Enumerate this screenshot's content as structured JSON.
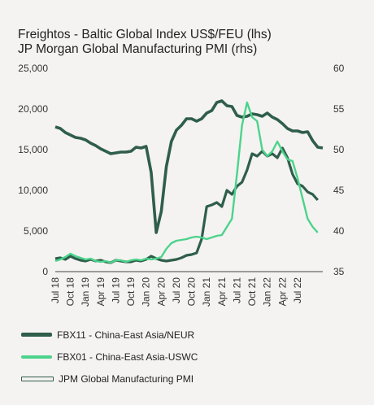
{
  "chart_data": {
    "type": "line",
    "title": [
      "Freightos  - Baltic Global Index US$/FEU (lhs)",
      "JP Morgan Global Manufacturing PMI (rhs)"
    ],
    "x_tick_labels": [
      "Jul 18",
      "Oct 18",
      "Jan 19",
      "Apr 19",
      "Jul 19",
      "Oct 19",
      "Jan 20",
      "Apr 20",
      "Jul 20",
      "Oct 20",
      "Jan 21",
      "Apr 21",
      "Jul 21",
      "Oct 21",
      "Jan 22",
      "Apr 22",
      "Jul 22"
    ],
    "x_range": [
      "2018-07",
      "2022-10"
    ],
    "y_left": {
      "range": [
        0,
        25000
      ],
      "ticks": [
        "0",
        "5,000",
        "10,000",
        "15,000",
        "20,000",
        "25,000"
      ]
    },
    "y_right": {
      "range": [
        35,
        60
      ],
      "ticks": [
        "35",
        "40",
        "45",
        "50",
        "55",
        "60"
      ]
    },
    "series": [
      {
        "name": "FBX11 - China-East Asia/NEUR",
        "axis": "left",
        "color": "#2f5e4b",
        "points": [
          [
            0,
            1600
          ],
          [
            1,
            1700
          ],
          [
            2,
            1500
          ],
          [
            3,
            1900
          ],
          [
            4,
            1600
          ],
          [
            5,
            1400
          ],
          [
            6,
            1300
          ],
          [
            7,
            1500
          ],
          [
            8,
            1300
          ],
          [
            9,
            1400
          ],
          [
            10,
            1200
          ],
          [
            11,
            1100
          ],
          [
            12,
            1400
          ],
          [
            13,
            1300
          ],
          [
            14,
            1200
          ],
          [
            15,
            1200
          ],
          [
            16,
            1400
          ],
          [
            17,
            1300
          ],
          [
            18,
            1500
          ],
          [
            19,
            1900
          ],
          [
            20,
            1600
          ],
          [
            21,
            1400
          ],
          [
            22,
            1300
          ],
          [
            23,
            1400
          ],
          [
            24,
            1500
          ],
          [
            25,
            1700
          ],
          [
            26,
            2000
          ],
          [
            27,
            2100
          ],
          [
            28,
            2300
          ],
          [
            29,
            4000
          ],
          [
            30,
            8000
          ],
          [
            31,
            8200
          ],
          [
            32,
            8500
          ],
          [
            33,
            8000
          ],
          [
            34,
            10000
          ],
          [
            35,
            9500
          ],
          [
            36,
            10500
          ],
          [
            37,
            11000
          ],
          [
            38,
            12500
          ],
          [
            39,
            14500
          ],
          [
            40,
            14200
          ],
          [
            41,
            14800
          ],
          [
            42,
            14200
          ],
          [
            43,
            14500
          ],
          [
            44,
            14000
          ],
          [
            45,
            15200
          ],
          [
            46,
            14000
          ],
          [
            47,
            12000
          ],
          [
            48,
            10800
          ],
          [
            49,
            10500
          ],
          [
            50,
            9800
          ],
          [
            51,
            9500
          ],
          [
            52,
            8800
          ]
        ]
      },
      {
        "name": "FBX01 - China-East Asia-USWC",
        "axis": "left",
        "color": "#4cd38b",
        "points": [
          [
            0,
            1300
          ],
          [
            1,
            1500
          ],
          [
            2,
            1800
          ],
          [
            3,
            2200
          ],
          [
            4,
            1900
          ],
          [
            5,
            1700
          ],
          [
            6,
            1500
          ],
          [
            7,
            1600
          ],
          [
            8,
            1300
          ],
          [
            9,
            1200
          ],
          [
            10,
            1300
          ],
          [
            11,
            1100
          ],
          [
            12,
            1400
          ],
          [
            13,
            1400
          ],
          [
            14,
            1200
          ],
          [
            15,
            1400
          ],
          [
            16,
            1500
          ],
          [
            17,
            1400
          ],
          [
            18,
            1600
          ],
          [
            19,
            1500
          ],
          [
            20,
            1600
          ],
          [
            21,
            1800
          ],
          [
            22,
            2800
          ],
          [
            23,
            3500
          ],
          [
            24,
            3800
          ],
          [
            25,
            3900
          ],
          [
            26,
            4000
          ],
          [
            27,
            4200
          ],
          [
            28,
            4300
          ],
          [
            29,
            4200
          ],
          [
            30,
            4000
          ],
          [
            31,
            4200
          ],
          [
            32,
            4400
          ],
          [
            33,
            4500
          ],
          [
            34,
            5500
          ],
          [
            35,
            6500
          ],
          [
            36,
            12000
          ],
          [
            37,
            18000
          ],
          [
            38,
            20800
          ],
          [
            39,
            19000
          ],
          [
            40,
            18500
          ],
          [
            41,
            15000
          ],
          [
            42,
            14200
          ],
          [
            43,
            14800
          ],
          [
            44,
            16000
          ],
          [
            45,
            14800
          ],
          [
            46,
            13800
          ],
          [
            47,
            13600
          ],
          [
            48,
            11500
          ],
          [
            49,
            9000
          ],
          [
            50,
            6500
          ],
          [
            51,
            5500
          ],
          [
            52,
            4800
          ]
        ]
      },
      {
        "name": "JPM Global Manufacturing PMI",
        "axis": "right",
        "color": "#2f5e4b",
        "style": "double-outline",
        "points": [
          [
            0,
            52.8
          ],
          [
            1,
            52.6
          ],
          [
            2,
            52.1
          ],
          [
            3,
            51.8
          ],
          [
            4,
            51.5
          ],
          [
            5,
            51.4
          ],
          [
            6,
            51.2
          ],
          [
            7,
            50.8
          ],
          [
            8,
            50.5
          ],
          [
            9,
            50.1
          ],
          [
            10,
            49.8
          ],
          [
            11,
            49.5
          ],
          [
            12,
            49.6
          ],
          [
            13,
            49.7
          ],
          [
            14,
            49.7
          ],
          [
            15,
            49.8
          ],
          [
            16,
            50.3
          ],
          [
            17,
            50.2
          ],
          [
            18,
            50.4
          ],
          [
            19,
            47.2
          ],
          [
            20,
            39.8
          ],
          [
            21,
            42.4
          ],
          [
            22,
            47.9
          ],
          [
            23,
            51.0
          ],
          [
            24,
            52.4
          ],
          [
            25,
            53.0
          ],
          [
            26,
            53.8
          ],
          [
            27,
            53.8
          ],
          [
            28,
            53.5
          ],
          [
            29,
            53.8
          ],
          [
            30,
            54.5
          ],
          [
            31,
            54.8
          ],
          [
            32,
            55.8
          ],
          [
            33,
            56.0
          ],
          [
            34,
            55.4
          ],
          [
            35,
            55.3
          ],
          [
            36,
            54.2
          ],
          [
            37,
            54.0
          ],
          [
            38,
            54.1
          ],
          [
            39,
            54.4
          ],
          [
            40,
            54.3
          ],
          [
            41,
            54.1
          ],
          [
            42,
            54.5
          ],
          [
            43,
            54.0
          ],
          [
            44,
            53.7
          ],
          [
            45,
            53.2
          ],
          [
            46,
            52.6
          ],
          [
            47,
            52.3
          ],
          [
            48,
            52.3
          ],
          [
            49,
            52.1
          ],
          [
            50,
            52.2
          ],
          [
            51,
            51.1
          ],
          [
            52,
            50.3
          ],
          [
            53,
            50.2
          ]
        ]
      }
    ],
    "legend_placement": "bottom",
    "grid": false
  }
}
